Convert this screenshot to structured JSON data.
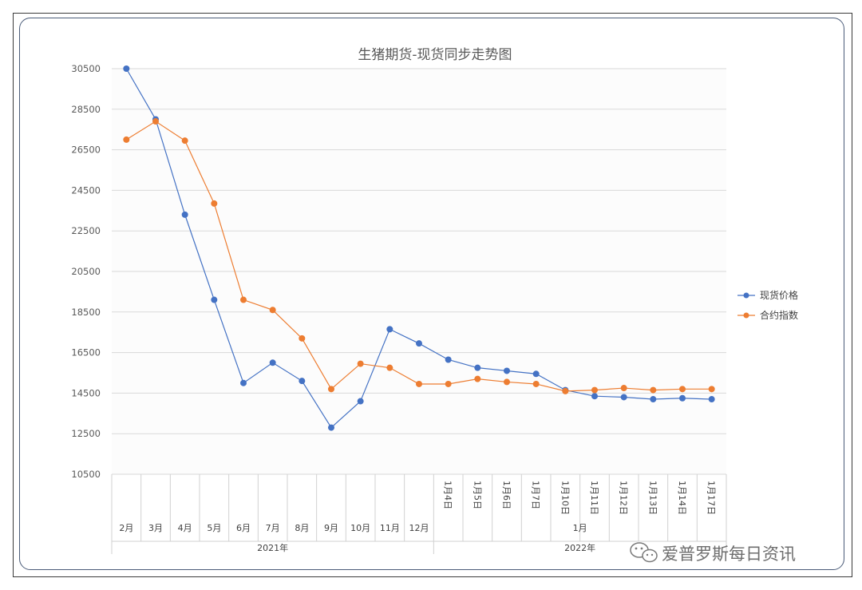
{
  "chart_data": {
    "type": "line",
    "title": "生猪期货-现货同步走势图",
    "ylim": [
      10500,
      30500
    ],
    "yticks": [
      "30500",
      "28500",
      "26500",
      "24500",
      "22500",
      "20500",
      "18500",
      "16500",
      "14500",
      "12500",
      "10500"
    ],
    "grid": true,
    "legend_position": "right",
    "categories": [
      "2月",
      "3月",
      "4月",
      "5月",
      "6月",
      "7月",
      "8月",
      "9月",
      "10月",
      "11月",
      "12月",
      "1月4日",
      "1月5日",
      "1月6日",
      "1月7日",
      "1月10日",
      "1月11日",
      "1月12日",
      "1月13日",
      "1月14日",
      "1月17日"
    ],
    "group_level1": [
      {
        "label": "1月",
        "span": 10
      }
    ],
    "group_level2": [
      {
        "label": "2021年",
        "span": 11
      },
      {
        "label": "2022年",
        "span": 10
      }
    ],
    "series": [
      {
        "name": "现货价格",
        "color": "#4472c4",
        "values": [
          30500,
          28000,
          23300,
          19100,
          15000,
          16000,
          15100,
          12800,
          14100,
          17650,
          16950,
          16150,
          15750,
          15600,
          15450,
          14650,
          14350,
          14300,
          14200,
          14250,
          14200
        ]
      },
      {
        "name": "合约指数",
        "color": "#ed7d31",
        "values": [
          27000,
          27900,
          26950,
          23850,
          19100,
          18600,
          17200,
          14700,
          15950,
          15750,
          14950,
          14950,
          15200,
          15050,
          14950,
          14600,
          14650,
          14750,
          14650,
          14700,
          14700
        ]
      }
    ]
  },
  "watermark": {
    "text": "爱普罗斯每日资讯",
    "icon": "wechat-icon"
  }
}
